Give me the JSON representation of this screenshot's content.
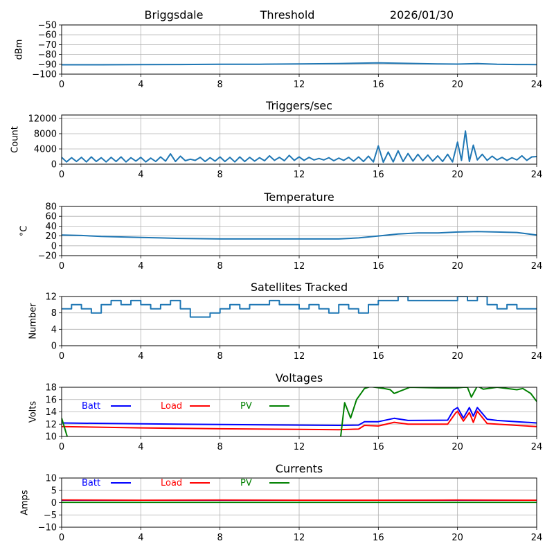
{
  "header": {
    "site": "Briggsdale",
    "mode": "Threshold",
    "date": "2026/01/30"
  },
  "chart_data": [
    {
      "id": "threshold",
      "type": "line",
      "title": "",
      "ylabel": "dBm",
      "xlim": [
        0,
        24
      ],
      "ylim": [
        -100,
        -50
      ],
      "xticks": [
        "0",
        "4",
        "8",
        "12",
        "16",
        "20",
        "24"
      ],
      "yticks": [
        {
          "v": -50,
          "label": "−50"
        },
        {
          "v": -60,
          "label": "−60"
        },
        {
          "v": -70,
          "label": "−70"
        },
        {
          "v": -80,
          "label": "−80"
        },
        {
          "v": -90,
          "label": "−90"
        },
        {
          "v": -100,
          "label": "−100"
        }
      ],
      "grid": true,
      "series": [
        {
          "name": "threshold",
          "color": "#1f77b4",
          "x": [
            0,
            2,
            4,
            6,
            8,
            10,
            12,
            14,
            16,
            17,
            18,
            19,
            20,
            21,
            22,
            23,
            24
          ],
          "y": [
            -90.5,
            -90.5,
            -90.3,
            -90.2,
            -90,
            -89.9,
            -89.6,
            -89.2,
            -88.6,
            -88.9,
            -89.3,
            -89.6,
            -89.8,
            -89.3,
            -90,
            -90.2,
            -90.3
          ]
        }
      ]
    },
    {
      "id": "triggers",
      "type": "line",
      "title": "Triggers/sec",
      "ylabel": "Count",
      "xlim": [
        0,
        24
      ],
      "ylim": [
        0,
        12900
      ],
      "xticks": [
        "0",
        "4",
        "8",
        "12",
        "16",
        "20",
        "24"
      ],
      "yticks": [
        {
          "v": 0,
          "label": "0"
        },
        {
          "v": 4000,
          "label": "4000"
        },
        {
          "v": 8000,
          "label": "8000"
        },
        {
          "v": 12000,
          "label": "12000"
        }
      ],
      "grid": true,
      "series": [
        {
          "name": "triggers",
          "color": "#1f77b4",
          "x": [
            0,
            0.25,
            0.5,
            0.75,
            1,
            1.25,
            1.5,
            1.75,
            2,
            2.25,
            2.5,
            2.75,
            3,
            3.25,
            3.5,
            3.75,
            4,
            4.25,
            4.5,
            4.75,
            5,
            5.25,
            5.5,
            5.75,
            6,
            6.25,
            6.5,
            6.75,
            7,
            7.25,
            7.5,
            7.75,
            8,
            8.25,
            8.5,
            8.75,
            9,
            9.25,
            9.5,
            9.75,
            10,
            10.25,
            10.5,
            10.75,
            11,
            11.25,
            11.5,
            11.75,
            12,
            12.25,
            12.5,
            12.75,
            13,
            13.25,
            13.5,
            13.75,
            14,
            14.25,
            14.5,
            14.75,
            15,
            15.25,
            15.5,
            15.75,
            16,
            16.25,
            16.5,
            16.75,
            17,
            17.25,
            17.5,
            17.75,
            18,
            18.25,
            18.5,
            18.75,
            19,
            19.25,
            19.5,
            19.75,
            20,
            20.2,
            20.4,
            20.6,
            20.8,
            21,
            21.25,
            21.5,
            21.75,
            22,
            22.25,
            22.5,
            22.75,
            23,
            23.25,
            23.5,
            23.75,
            24
          ],
          "y": [
            1800,
            600,
            1700,
            700,
            1800,
            600,
            1900,
            700,
            1700,
            600,
            1800,
            700,
            1900,
            600,
            1700,
            800,
            1800,
            600,
            1600,
            700,
            1900,
            800,
            2700,
            700,
            2100,
            900,
            1300,
            1000,
            1800,
            700,
            1700,
            800,
            1900,
            700,
            1800,
            600,
            1900,
            700,
            1800,
            800,
            1700,
            900,
            2200,
            1000,
            1800,
            900,
            2300,
            1000,
            1900,
            1000,
            1800,
            1100,
            1500,
            1100,
            1700,
            900,
            1600,
            1000,
            1800,
            800,
            1900,
            700,
            2100,
            600,
            4800,
            500,
            3200,
            600,
            3500,
            700,
            2800,
            800,
            2600,
            900,
            2400,
            800,
            2200,
            700,
            2600,
            600,
            5800,
            1000,
            8700,
            700,
            5000,
            1100,
            2600,
            1000,
            2100,
            1100,
            1800,
            1000,
            1700,
            1100,
            2200,
            1000,
            1900,
            2000
          ]
        }
      ]
    },
    {
      "id": "temperature",
      "type": "line",
      "title": "Temperature",
      "ylabel": "°C",
      "xlim": [
        0,
        24
      ],
      "ylim": [
        -20,
        80
      ],
      "xticks": [
        "0",
        "4",
        "8",
        "12",
        "16",
        "20",
        "24"
      ],
      "yticks": [
        {
          "v": -20,
          "label": "−20"
        },
        {
          "v": 0,
          "label": "0"
        },
        {
          "v": 20,
          "label": "20"
        },
        {
          "v": 40,
          "label": "40"
        },
        {
          "v": 60,
          "label": "60"
        },
        {
          "v": 80,
          "label": "80"
        }
      ],
      "grid": true,
      "series": [
        {
          "name": "temperature",
          "color": "#1f77b4",
          "x": [
            0,
            1,
            2,
            3,
            4,
            5,
            6,
            8,
            10,
            12,
            14,
            15,
            16,
            17,
            18,
            19,
            20,
            21,
            22,
            23,
            24
          ],
          "y": [
            22,
            21,
            19,
            18,
            17,
            16,
            15,
            14,
            14,
            14,
            14,
            16,
            20,
            24,
            26,
            26,
            28,
            29,
            28,
            27,
            22
          ]
        }
      ]
    },
    {
      "id": "satellites",
      "type": "line",
      "title": "Satellites Tracked",
      "ylabel": "Number",
      "xlim": [
        0,
        24
      ],
      "ylim": [
        0,
        12
      ],
      "xticks": [
        "0",
        "4",
        "8",
        "12",
        "16",
        "20",
        "24"
      ],
      "yticks": [
        {
          "v": 0,
          "label": "0"
        },
        {
          "v": 4,
          "label": "4"
        },
        {
          "v": 8,
          "label": "8"
        },
        {
          "v": 12,
          "label": "12"
        }
      ],
      "grid": true,
      "step": true,
      "series": [
        {
          "name": "satellites",
          "color": "#1f77b4",
          "x": [
            0,
            0.5,
            1,
            1.5,
            2,
            2.5,
            3,
            3.5,
            4,
            4.5,
            5,
            5.5,
            6,
            6.5,
            7,
            7.5,
            8,
            8.5,
            9,
            9.5,
            10,
            10.5,
            11,
            11.5,
            12,
            12.5,
            13,
            13.5,
            14,
            14.5,
            15,
            15.5,
            16,
            16.5,
            17,
            17.5,
            18,
            18.5,
            19,
            19.5,
            20,
            20.5,
            21,
            21.5,
            22,
            22.5,
            23,
            23.5,
            24
          ],
          "y": [
            9,
            10,
            9,
            8,
            10,
            11,
            10,
            11,
            10,
            9,
            10,
            11,
            9,
            7,
            7,
            8,
            9,
            10,
            9,
            10,
            10,
            11,
            10,
            10,
            9,
            10,
            9,
            8,
            10,
            9,
            8,
            10,
            11,
            11,
            12,
            11,
            11,
            11,
            11,
            11,
            12,
            11,
            12,
            10,
            9,
            10,
            9,
            9,
            9
          ]
        }
      ]
    },
    {
      "id": "voltages",
      "type": "line",
      "title": "Voltages",
      "ylabel": "Volts",
      "xlim": [
        0,
        24
      ],
      "ylim": [
        10,
        18
      ],
      "xticks": [
        "0",
        "4",
        "8",
        "12",
        "16",
        "20",
        "24"
      ],
      "yticks": [
        {
          "v": 10,
          "label": "10"
        },
        {
          "v": 12,
          "label": "12"
        },
        {
          "v": 14,
          "label": "14"
        },
        {
          "v": 16,
          "label": "16"
        },
        {
          "v": 18,
          "label": "18"
        }
      ],
      "grid": true,
      "legend": "top-left inline",
      "series": [
        {
          "name": "Batt",
          "color": "#0000ff",
          "x": [
            0,
            4,
            8,
            12,
            14,
            15,
            15.3,
            16,
            16.8,
            17.5,
            19.5,
            19.8,
            20,
            20.3,
            20.6,
            20.8,
            21,
            21.5,
            22,
            23,
            24
          ],
          "y": [
            12.2,
            12.05,
            11.95,
            11.85,
            11.8,
            11.85,
            12.4,
            12.4,
            12.95,
            12.6,
            12.65,
            14.3,
            14.7,
            13.0,
            14.7,
            13.3,
            14.7,
            12.8,
            12.6,
            12.4,
            12.2
          ]
        },
        {
          "name": "Load",
          "color": "#ff0000",
          "x": [
            0,
            4,
            8,
            12,
            14,
            15,
            15.3,
            16,
            16.8,
            17.5,
            19.5,
            19.9,
            20,
            20.3,
            20.6,
            20.8,
            21,
            21.5,
            23,
            24
          ],
          "y": [
            11.6,
            11.4,
            11.25,
            11.15,
            11.1,
            11.2,
            11.8,
            11.7,
            12.3,
            12.0,
            12.0,
            13.8,
            14.1,
            12.5,
            13.9,
            12.3,
            14.1,
            12.1,
            11.8,
            11.6
          ]
        },
        {
          "name": "PV",
          "color": "#008000",
          "x": [
            0,
            0.28,
            null,
            14.1,
            14.3,
            14.6,
            14.9,
            15.3,
            15.6,
            16.3,
            16.6,
            16.8,
            17.2,
            17.6,
            19,
            20,
            20.3,
            20.5,
            20.7,
            21,
            21.3,
            22,
            23,
            23.3,
            23.7,
            24
          ],
          "y": [
            13,
            10,
            null,
            10,
            15.5,
            13,
            16,
            17.8,
            18.1,
            17.8,
            17.6,
            17.0,
            17.5,
            18,
            17.9,
            17.9,
            18,
            18,
            16.4,
            18.2,
            17.7,
            18,
            17.6,
            17.8,
            17,
            15.7
          ]
        }
      ]
    },
    {
      "id": "currents",
      "type": "line",
      "title": "Currents",
      "ylabel": "Amps",
      "xlim": [
        0,
        24
      ],
      "ylim": [
        -10,
        10
      ],
      "xticks": [
        "0",
        "4",
        "8",
        "12",
        "16",
        "20",
        "24"
      ],
      "yticks": [
        {
          "v": -10,
          "label": "−10"
        },
        {
          "v": -5,
          "label": "−5"
        },
        {
          "v": 0,
          "label": "0"
        },
        {
          "v": 5,
          "label": "5"
        },
        {
          "v": 10,
          "label": "10"
        }
      ],
      "grid": true,
      "legend": "top-left inline",
      "series": [
        {
          "name": "Batt",
          "color": "#0000ff",
          "x": [
            0,
            12,
            24
          ],
          "y": [
            1.0,
            1.0,
            1.0
          ]
        },
        {
          "name": "Load",
          "color": "#ff0000",
          "x": [
            0,
            4,
            8,
            12,
            16,
            20,
            24
          ],
          "y": [
            1.1,
            1.0,
            1.05,
            1.0,
            1.0,
            1.05,
            1.0
          ]
        },
        {
          "name": "PV",
          "color": "#008000",
          "x": [
            0,
            12,
            24
          ],
          "y": [
            0.1,
            0.1,
            0.1
          ]
        }
      ]
    }
  ]
}
